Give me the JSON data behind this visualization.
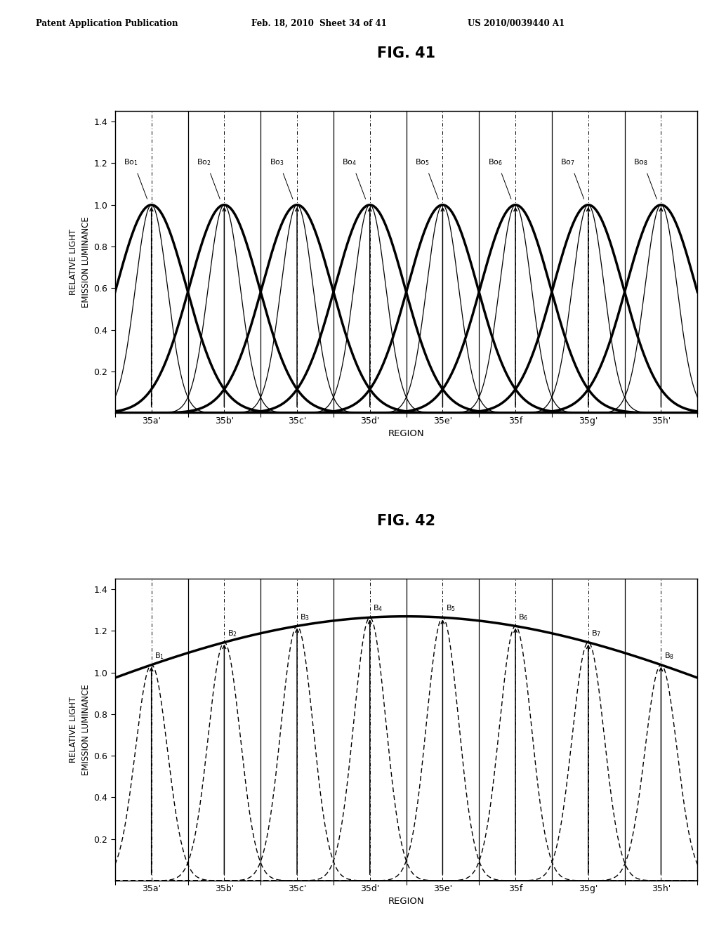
{
  "fig41_title": "FIG. 41",
  "fig42_title": "FIG. 42",
  "header_left": "Patent Application Publication",
  "header_mid": "Feb. 18, 2010  Sheet 34 of 41",
  "header_right": "US 2010/0039440 A1",
  "ylabel": "RELATIVE LIGHT\nEMISSION LUMINANCE",
  "xlabel": "REGION",
  "yticks": [
    0.2,
    0.4,
    0.6,
    0.8,
    1.0,
    1.2,
    1.4
  ],
  "n_regions": 8,
  "region_labels": [
    "35a'",
    "35b'",
    "35c'",
    "35d'",
    "35e'",
    "35f",
    "35g'",
    "35h'"
  ],
  "bo_labels_fig41": [
    "Bo1",
    "Bo2",
    "Bo3",
    "Bo4",
    "Bo5",
    "Bo6",
    "Bo7",
    "Bo8"
  ],
  "b_labels_fig42": [
    "B1",
    "B2",
    "B3",
    "B4",
    "B5",
    "B6",
    "B7",
    "B8"
  ],
  "sigma_narrow": 0.22,
  "sigma_wide": 0.48,
  "fig42_envelope_peak": 1.27,
  "fig42_env_sigma": 5.5,
  "background_color": "#ffffff"
}
